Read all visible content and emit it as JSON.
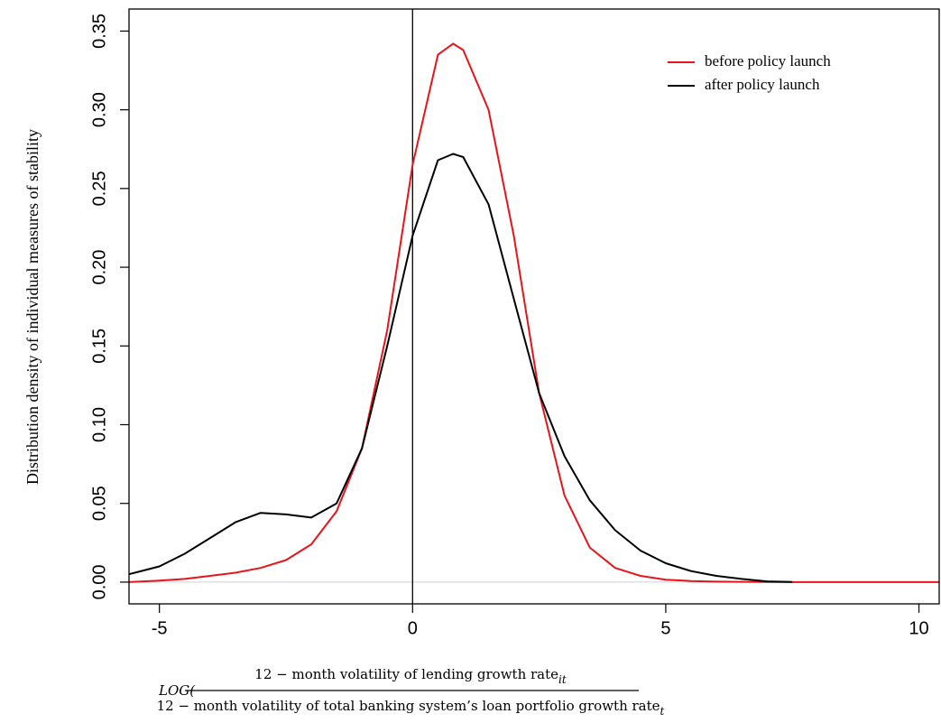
{
  "chart_data": {
    "type": "line",
    "ylabel": "Distribution density of individual measures of stability",
    "xlabel": {
      "prefix": "LOG(",
      "numerator": "12 − month volatility of lending growth rate",
      "numerator_sub": "it",
      "denominator": "12 − month volatility of total banking system’s loan portfolio growth rate",
      "denominator_sub": "t"
    },
    "x": [
      -5.6,
      -5,
      -4.5,
      -4,
      -3.5,
      -3,
      -2.5,
      -2,
      -1.5,
      -1,
      -0.5,
      0,
      0.5,
      0.8,
      1,
      1.5,
      2,
      2.5,
      3,
      3.5,
      4,
      4.5,
      5,
      5.5,
      6,
      6.5,
      7,
      7.5,
      8,
      9,
      10,
      10.4
    ],
    "series": [
      {
        "name": "before policy launch",
        "color": "#e8141b",
        "values": [
          0.0,
          0.001,
          0.002,
          0.004,
          0.006,
          0.009,
          0.014,
          0.024,
          0.045,
          0.085,
          0.16,
          0.265,
          0.335,
          0.342,
          0.338,
          0.3,
          0.22,
          0.12,
          0.055,
          0.022,
          0.009,
          0.004,
          0.0015,
          0.0007,
          0.0003,
          0.0002,
          0.0001,
          0.0,
          0.0,
          0.0,
          0.0,
          0.0
        ]
      },
      {
        "name": "after policy launch",
        "color": "#000000",
        "values": [
          0.005,
          0.01,
          0.018,
          0.028,
          0.038,
          0.044,
          0.043,
          0.041,
          0.05,
          0.085,
          0.15,
          0.22,
          0.268,
          0.272,
          0.27,
          0.24,
          0.18,
          0.12,
          0.08,
          0.052,
          0.033,
          0.02,
          0.012,
          0.007,
          0.004,
          0.002,
          0.0005,
          0.0001,
          null,
          null,
          null,
          null
        ]
      }
    ],
    "xlim": [
      -5.6,
      10.4
    ],
    "ylim": [
      -0.0138,
      0.364
    ],
    "xticks": [
      -5,
      0,
      5,
      10
    ],
    "yticks": [
      {
        "value": 0,
        "label": "0.00"
      },
      {
        "value": 0.05,
        "label": "0.05"
      },
      {
        "value": 0.1,
        "label": "0.10"
      },
      {
        "value": 0.15,
        "label": "0.15"
      },
      {
        "value": 0.2,
        "label": "0.20"
      },
      {
        "value": 0.25,
        "label": "0.25"
      },
      {
        "value": 0.3,
        "label": "0.30"
      },
      {
        "value": 0.35,
        "label": "0.35"
      }
    ],
    "vline": 0,
    "hline": 0,
    "legend": "top-right"
  }
}
